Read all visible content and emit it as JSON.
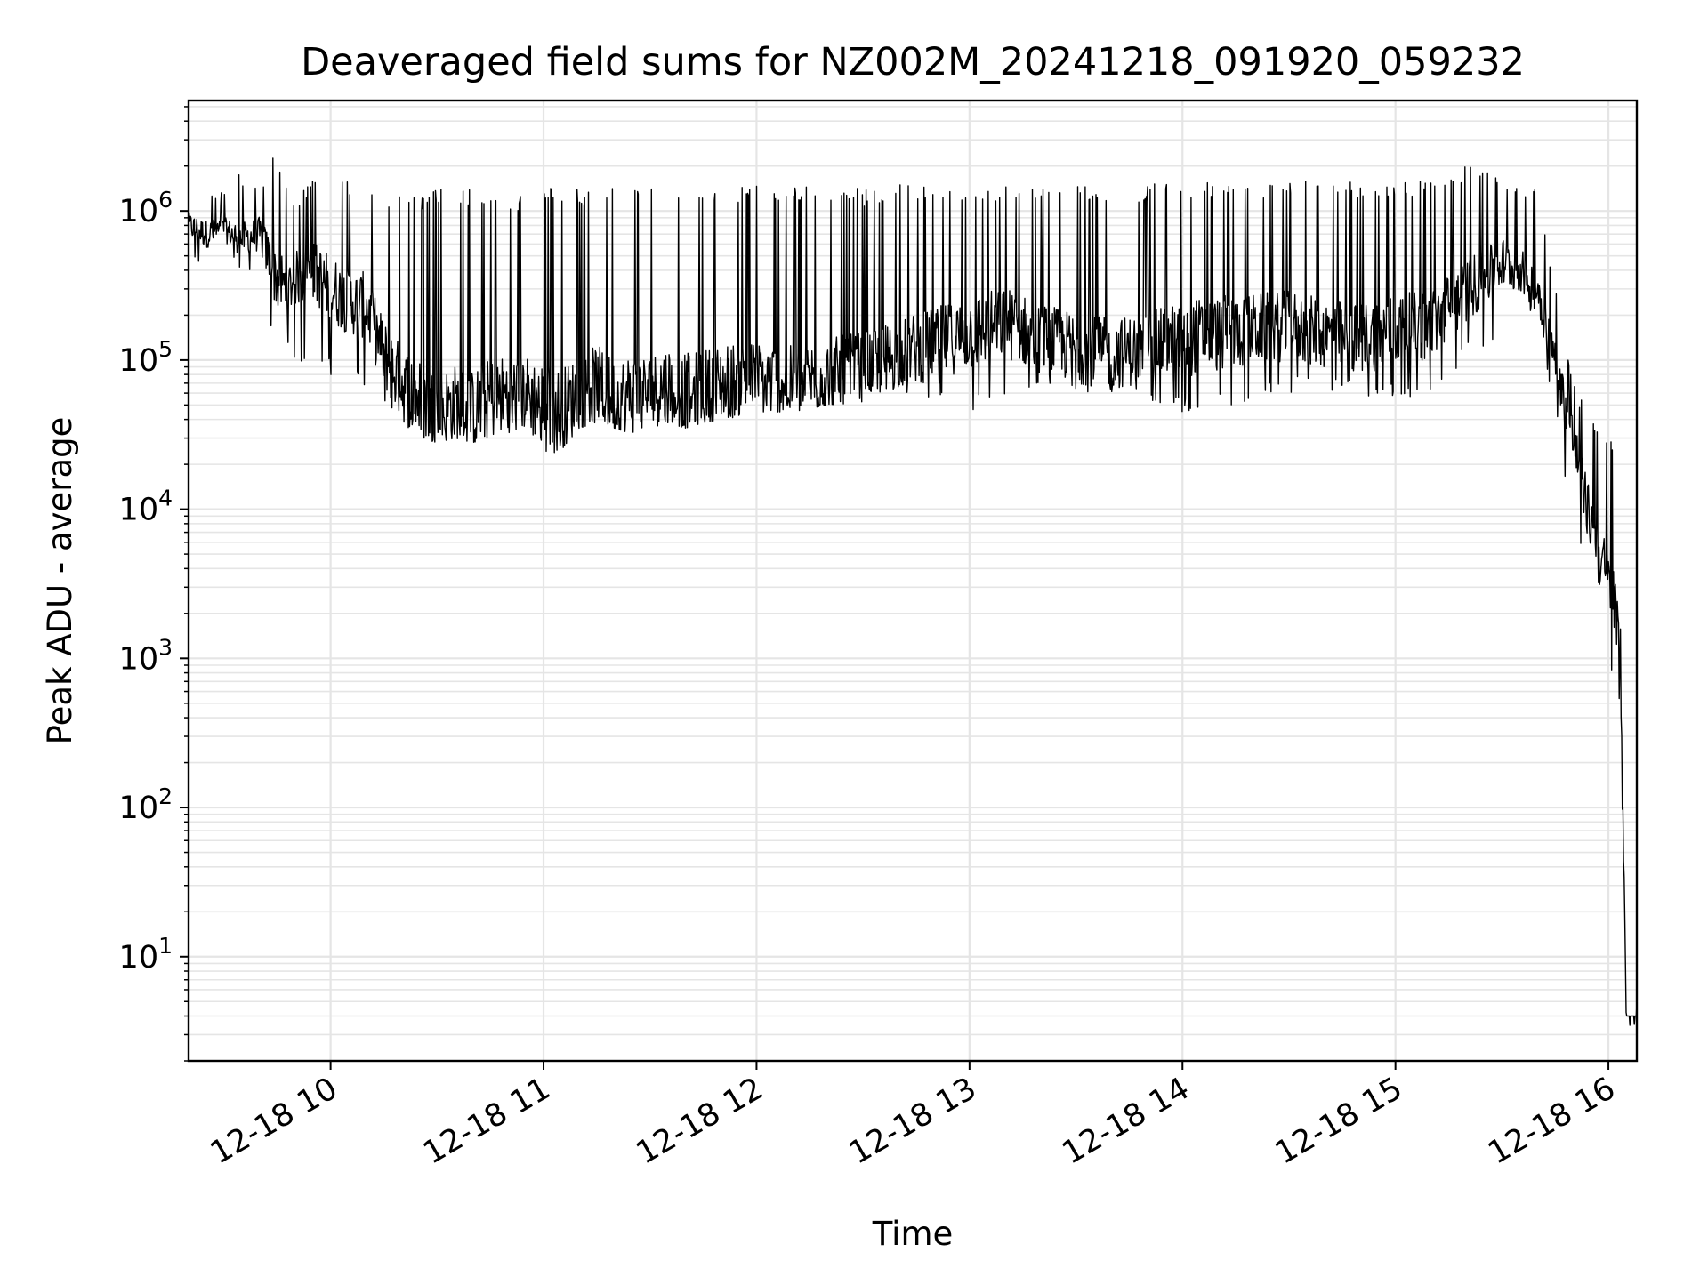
{
  "chart_data": {
    "type": "line",
    "title": "Deaveraged field sums for NZ002M_20241218_091920_059232",
    "xlabel": "Time",
    "ylabel": "Peak ADU - average",
    "x_scale": "time",
    "y_scale": "log",
    "xlim": [
      "2024-12-18 09:20",
      "2024-12-18 16:08"
    ],
    "ylim": [
      2,
      5500000
    ],
    "x_ticks": [
      "12-18 10",
      "12-18 11",
      "12-18 12",
      "12-18 13",
      "12-18 14",
      "12-18 15",
      "12-18 16"
    ],
    "y_ticks": [
      {
        "value": 10,
        "base": "10",
        "exp": "1"
      },
      {
        "value": 100,
        "base": "10",
        "exp": "2"
      },
      {
        "value": 1000,
        "base": "10",
        "exp": "3"
      },
      {
        "value": 10000,
        "base": "10",
        "exp": "4"
      },
      {
        "value": 100000,
        "base": "10",
        "exp": "5"
      },
      {
        "value": 1000000,
        "base": "10",
        "exp": "6"
      }
    ],
    "grid": true,
    "line_color": "#000000",
    "grid_color": "#e5e5e5",
    "series": [
      {
        "x": [
          "09:20",
          "09:25",
          "09:30",
          "09:35",
          "09:40",
          "09:45",
          "09:48",
          "09:50",
          "09:55",
          "10:00",
          "10:05",
          "10:10",
          "10:15",
          "10:20",
          "10:25",
          "10:30",
          "10:35",
          "10:40",
          "10:45",
          "10:50",
          "10:55",
          "11:00",
          "11:05",
          "11:10",
          "11:15",
          "11:20",
          "11:25",
          "11:30",
          "11:35",
          "11:40",
          "11:45",
          "11:50",
          "11:55",
          "12:00",
          "12:10",
          "12:20",
          "12:30",
          "12:40",
          "12:50",
          "13:00",
          "13:10",
          "13:20",
          "13:30",
          "13:40",
          "13:50",
          "14:00",
          "14:10",
          "14:20",
          "14:30",
          "14:40",
          "14:50",
          "15:00",
          "15:10",
          "15:20",
          "15:25",
          "15:30",
          "15:35",
          "15:40",
          "15:45",
          "15:50",
          "15:55",
          "16:00",
          "16:02",
          "16:03",
          "16:04",
          "16:05",
          "16:08"
        ],
        "y": [
          800000,
          700000,
          750000,
          650000,
          700000,
          350000,
          300000,
          350000,
          400000,
          300000,
          250000,
          230000,
          110000,
          70000,
          55000,
          45000,
          50000,
          45000,
          55000,
          60000,
          60000,
          50000,
          45000,
          60000,
          70000,
          55000,
          60000,
          60000,
          70000,
          60000,
          65000,
          70000,
          75000,
          75000,
          70000,
          80000,
          90000,
          110000,
          130000,
          150000,
          180000,
          140000,
          120000,
          110000,
          120000,
          140000,
          150000,
          160000,
          170000,
          150000,
          140000,
          160000,
          170000,
          300000,
          350000,
          450000,
          400000,
          300000,
          100000,
          30000,
          8000,
          3000,
          2000,
          1500,
          150,
          4,
          4
        ],
        "min": [
          450000,
          400000,
          450000,
          400000,
          300000,
          120000,
          100000,
          100000,
          90000,
          80000,
          70000,
          65000,
          45000,
          35000,
          30000,
          28000,
          30000,
          28000,
          30000,
          32000,
          35000,
          22000,
          25000,
          35000,
          38000,
          35000,
          32000,
          35000,
          38000,
          35000,
          38000,
          40000,
          40000,
          45000,
          45000,
          50000,
          52000,
          55000,
          55000,
          45000,
          50000,
          55000,
          55000,
          50000,
          55000,
          42000,
          45000,
          55000,
          60000,
          60000,
          55000,
          55000,
          60000,
          100000,
          120000,
          150000,
          200000,
          150000,
          40000,
          8000,
          2500,
          800,
          600,
          600,
          4,
          4,
          4
        ],
        "max": [
          1500000,
          1500000,
          1400000,
          1900000,
          1500000,
          2900000,
          1300000,
          1300000,
          1600000,
          2000000,
          1600000,
          1500000,
          1200000,
          1300000,
          1300000,
          1400000,
          1400000,
          1400000,
          1400000,
          1300000,
          1300000,
          1400000,
          1500000,
          1400000,
          1400000,
          1500000,
          1500000,
          1400000,
          1500000,
          1500000,
          1500000,
          1500000,
          1500000,
          1500000,
          1500000,
          1500000,
          1400000,
          1500000,
          1500000,
          1500000,
          1500000,
          1500000,
          1500000,
          1400000,
          1500000,
          1600000,
          1600000,
          1600000,
          1600000,
          1600000,
          1600000,
          1600000,
          1600000,
          2100000,
          1900000,
          1700000,
          1600000,
          1600000,
          300000,
          80000,
          40000,
          30000,
          27000,
          6000,
          200,
          4,
          4
        ]
      }
    ]
  }
}
